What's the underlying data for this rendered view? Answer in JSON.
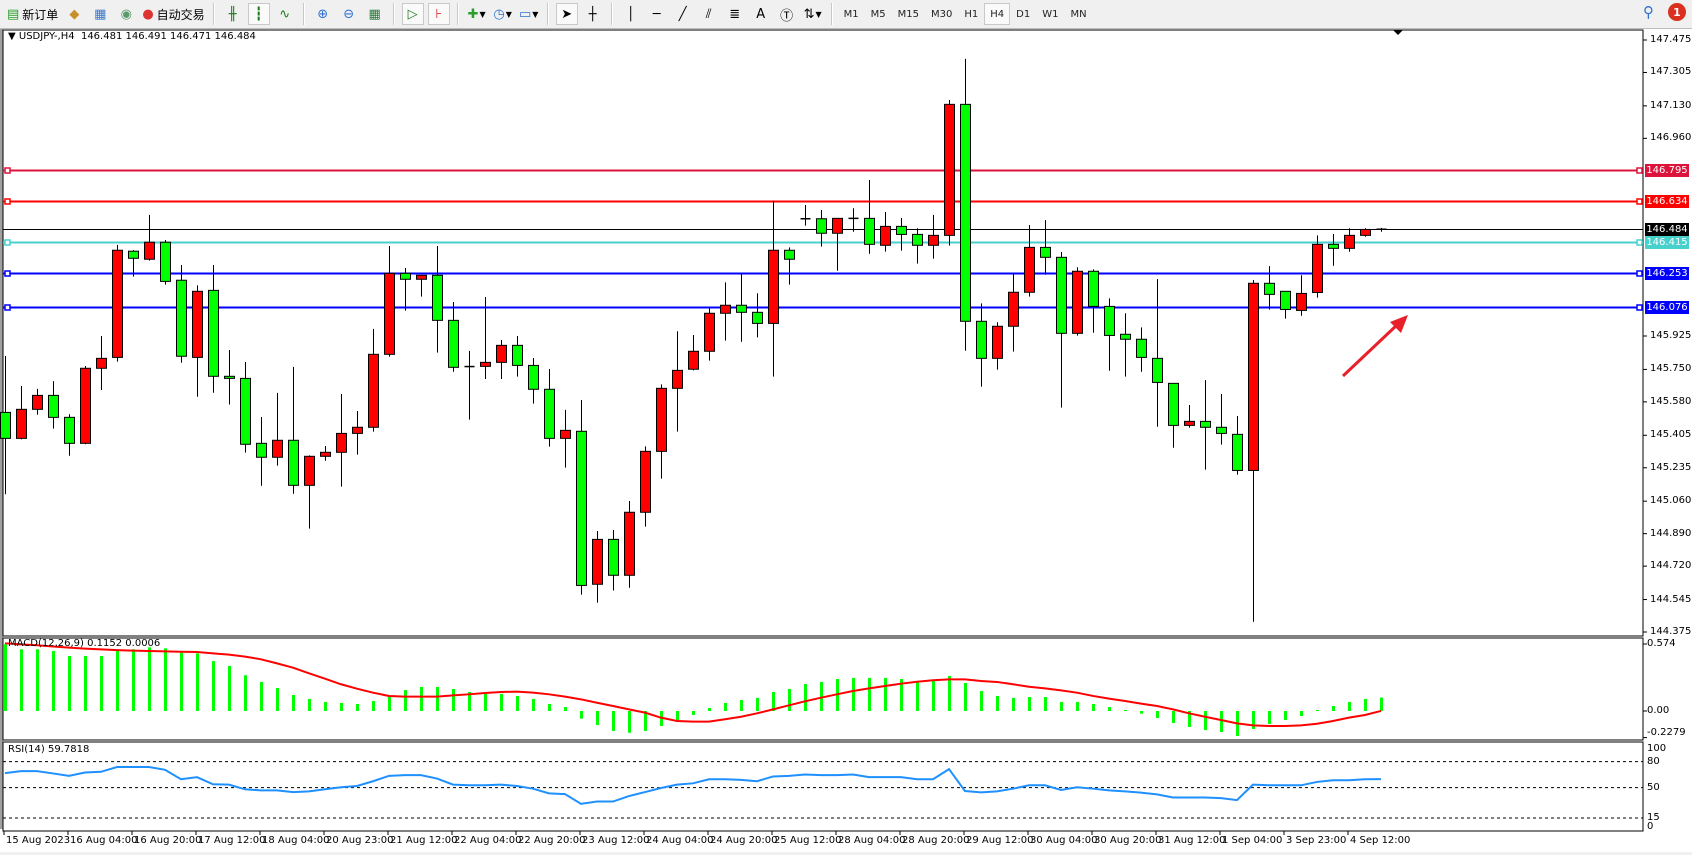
{
  "toolbar": {
    "new_order_label": "新订单",
    "auto_trading_label": "自动交易",
    "timeframes": [
      "M1",
      "M5",
      "M15",
      "M30",
      "H1",
      "H4",
      "D1",
      "W1",
      "MN"
    ],
    "active_timeframe": "H4",
    "notification_count": "1"
  },
  "chart": {
    "symbol": "USDJPY-,H4",
    "ohlc": "146.481 146.491 146.471 146.484",
    "colors": {
      "bull": "#ff0000",
      "bear": "#00ff00",
      "outline": "#000000"
    },
    "price_ticks": [
      "147.475",
      "147.305",
      "147.130",
      "146.960",
      "145.925",
      "145.750",
      "145.580",
      "145.405",
      "145.235",
      "145.060",
      "144.890",
      "144.720",
      "144.545",
      "144.375"
    ],
    "levels": [
      {
        "price": 146.795,
        "label": "146.795",
        "color": "#dc143c"
      },
      {
        "price": 146.634,
        "label": "146.634",
        "color": "#ff0000"
      },
      {
        "price": 146.484,
        "label": "146.484",
        "color": "#000000"
      },
      {
        "price": 146.415,
        "label": "146.415",
        "color": "#48d1cc"
      },
      {
        "price": 146.253,
        "label": "146.253",
        "color": "#0000ff"
      },
      {
        "price": 146.076,
        "label": "146.076",
        "color": "#0000ff"
      }
    ],
    "annotation": {
      "type": "arrow",
      "color": "#e8202a",
      "direction": "up-right"
    },
    "date_labels": [
      "15 Aug 2023",
      "16 Aug 04:00",
      "16 Aug 20:00",
      "17 Aug 12:00",
      "18 Aug 04:00",
      "20 Aug 23:00",
      "21 Aug 12:00",
      "22 Aug 04:00",
      "22 Aug 20:00",
      "23 Aug 12:00",
      "24 Aug 04:00",
      "24 Aug 20:00",
      "25 Aug 12:00",
      "28 Aug 04:00",
      "28 Aug 20:00",
      "29 Aug 12:00",
      "30 Aug 04:00",
      "30 Aug 20:00",
      "31 Aug 12:00",
      "1 Sep 04:00",
      "3 Sep 23:00",
      "4 Sep 12:00"
    ]
  },
  "chart_data": [
    {
      "type": "candlestick",
      "title": "USDJPY-,H4",
      "ylim": [
        144.375,
        147.475
      ],
      "ohlc_order": [
        "open",
        "high",
        "low",
        "close"
      ],
      "candles": [
        [
          145.525,
          145.82,
          145.096,
          145.389
        ],
        [
          145.389,
          145.663,
          145.384,
          145.541
        ],
        [
          145.541,
          145.648,
          145.513,
          145.614
        ],
        [
          145.614,
          145.689,
          145.44,
          145.499
        ],
        [
          145.499,
          145.515,
          145.298,
          145.363
        ],
        [
          145.363,
          145.768,
          145.358,
          145.756
        ],
        [
          145.756,
          145.925,
          145.642,
          145.808
        ],
        [
          145.813,
          146.402,
          145.791,
          146.374
        ],
        [
          146.369,
          146.375,
          146.236,
          146.332
        ],
        [
          146.327,
          146.559,
          146.32,
          146.416
        ],
        [
          146.416,
          146.428,
          146.194,
          146.211
        ],
        [
          146.217,
          146.297,
          145.785,
          145.819
        ],
        [
          145.813,
          146.19,
          145.607,
          146.159
        ],
        [
          146.164,
          146.297,
          145.628,
          145.714
        ],
        [
          145.714,
          145.852,
          145.566,
          145.703
        ],
        [
          145.703,
          145.789,
          145.314,
          145.358
        ],
        [
          145.363,
          145.501,
          145.141,
          145.29
        ],
        [
          145.29,
          145.627,
          145.246,
          145.379
        ],
        [
          145.379,
          145.763,
          145.099,
          145.143
        ],
        [
          145.143,
          145.3,
          144.916,
          145.295
        ],
        [
          145.295,
          145.349,
          145.272,
          145.316
        ],
        [
          145.316,
          145.621,
          145.136,
          145.415
        ],
        [
          145.415,
          145.532,
          145.304,
          145.447
        ],
        [
          145.447,
          145.962,
          145.424,
          145.829
        ],
        [
          145.829,
          146.396,
          145.817,
          146.253
        ],
        [
          146.253,
          146.281,
          146.058,
          146.222
        ],
        [
          146.222,
          146.243,
          146.131,
          146.243
        ],
        [
          146.243,
          146.396,
          145.838,
          146.007
        ],
        [
          146.007,
          146.103,
          145.738,
          145.761
        ],
        [
          145.765,
          145.847,
          145.487,
          145.765
        ],
        [
          145.766,
          146.129,
          145.7,
          145.787
        ],
        [
          145.787,
          145.904,
          145.7,
          145.876
        ],
        [
          145.876,
          145.925,
          145.712,
          145.771
        ],
        [
          145.771,
          145.81,
          145.571,
          145.646
        ],
        [
          145.646,
          145.752,
          145.346,
          145.389
        ],
        [
          145.389,
          145.538,
          145.236,
          145.431
        ],
        [
          145.426,
          145.59,
          144.571,
          144.619
        ],
        [
          144.625,
          144.904,
          144.529,
          144.86
        ],
        [
          144.86,
          144.909,
          144.592,
          144.672
        ],
        [
          144.672,
          145.061,
          144.607,
          145.002
        ],
        [
          145.002,
          145.347,
          144.927,
          145.321
        ],
        [
          145.321,
          145.672,
          145.178,
          145.651
        ],
        [
          145.651,
          145.95,
          145.424,
          145.745
        ],
        [
          145.751,
          145.93,
          145.745,
          145.845
        ],
        [
          145.845,
          146.07,
          145.796,
          146.044
        ],
        [
          146.044,
          146.206,
          145.901,
          146.086
        ],
        [
          146.086,
          146.25,
          145.895,
          146.049
        ],
        [
          146.049,
          146.149,
          145.918,
          145.991
        ],
        [
          145.991,
          146.634,
          145.712,
          146.374
        ],
        [
          146.374,
          146.389,
          146.194,
          146.327
        ],
        [
          146.539,
          146.611,
          146.503,
          146.539
        ],
        [
          146.539,
          146.585,
          146.393,
          146.463
        ],
        [
          146.463,
          146.541,
          146.267,
          146.541
        ],
        [
          146.541,
          146.594,
          146.471,
          146.541
        ],
        [
          146.541,
          146.742,
          146.356,
          146.405
        ],
        [
          146.4,
          146.574,
          146.367,
          146.499
        ],
        [
          146.499,
          146.543,
          146.372,
          146.457
        ],
        [
          146.457,
          146.489,
          146.304,
          146.4
        ],
        [
          146.4,
          146.559,
          146.33,
          146.452
        ],
        [
          146.452,
          147.161,
          146.398,
          147.138
        ],
        [
          147.138,
          147.376,
          145.848,
          146.002
        ],
        [
          146.002,
          146.096,
          145.66,
          145.808
        ],
        [
          145.808,
          145.997,
          145.749,
          145.976
        ],
        [
          145.976,
          146.253,
          145.843,
          146.154
        ],
        [
          146.154,
          146.506,
          146.131,
          146.389
        ],
        [
          146.389,
          146.532,
          146.246,
          146.337
        ],
        [
          146.337,
          146.365,
          145.55,
          145.939
        ],
        [
          145.939,
          146.285,
          145.927,
          146.264
        ],
        [
          146.264,
          146.274,
          145.942,
          146.08
        ],
        [
          146.08,
          146.122,
          145.743,
          145.928
        ],
        [
          145.934,
          146.044,
          145.712,
          145.908
        ],
        [
          145.908,
          145.97,
          145.738,
          145.813
        ],
        [
          145.808,
          146.223,
          145.45,
          145.682
        ],
        [
          145.677,
          145.677,
          145.34,
          145.457
        ],
        [
          145.457,
          145.564,
          145.445,
          145.478
        ],
        [
          145.478,
          145.694,
          145.225,
          145.447
        ],
        [
          145.447,
          145.621,
          145.356,
          145.415
        ],
        [
          145.41,
          145.506,
          145.199,
          145.221
        ],
        [
          145.221,
          146.218,
          144.429,
          146.201
        ],
        [
          146.201,
          146.291,
          146.063,
          146.143
        ],
        [
          146.159,
          146.159,
          146.016,
          146.064
        ],
        [
          146.059,
          146.243,
          146.031,
          146.148
        ],
        [
          146.153,
          146.452,
          146.126,
          146.405
        ],
        [
          146.405,
          146.459,
          146.293,
          146.384
        ],
        [
          146.384,
          146.489,
          146.366,
          146.452
        ],
        [
          146.452,
          146.489,
          146.445,
          146.483
        ],
        [
          146.481,
          146.491,
          146.471,
          146.484
        ]
      ]
    },
    {
      "type": "bar",
      "title": "MACD(12,26,9) 0.1152 0.0006",
      "ylim": [
        -0.2279,
        0.574
      ],
      "ticks": [
        "0.574",
        "0.00",
        "-0.2279"
      ],
      "series": [
        {
          "name": "MACD",
          "type": "bar",
          "color": "#00ff00",
          "values": [
            0.571,
            0.529,
            0.529,
            0.514,
            0.471,
            0.471,
            0.471,
            0.523,
            0.529,
            0.546,
            0.537,
            0.5,
            0.494,
            0.428,
            0.386,
            0.306,
            0.249,
            0.197,
            0.137,
            0.103,
            0.077,
            0.069,
            0.06,
            0.086,
            0.129,
            0.18,
            0.206,
            0.206,
            0.189,
            0.163,
            0.146,
            0.146,
            0.129,
            0.103,
            0.06,
            0.034,
            -0.066,
            -0.12,
            -0.171,
            -0.186,
            -0.171,
            -0.129,
            -0.077,
            -0.034,
            0.026,
            0.069,
            0.094,
            0.112,
            0.163,
            0.189,
            0.231,
            0.249,
            0.274,
            0.283,
            0.283,
            0.283,
            0.274,
            0.257,
            0.257,
            0.3,
            0.24,
            0.171,
            0.129,
            0.112,
            0.12,
            0.12,
            0.077,
            0.077,
            0.06,
            0.034,
            0.009,
            -0.023,
            -0.06,
            -0.103,
            -0.137,
            -0.163,
            -0.18,
            -0.214,
            -0.154,
            -0.111,
            -0.077,
            -0.043,
            0.009,
            0.043,
            0.077,
            0.103,
            0.1152
          ]
        },
        {
          "name": "Signal",
          "type": "line",
          "color": "#ff0000",
          "values": [
            0.58,
            0.571,
            0.563,
            0.553,
            0.543,
            0.535,
            0.528,
            0.522,
            0.517,
            0.514,
            0.511,
            0.508,
            0.506,
            0.494,
            0.483,
            0.466,
            0.443,
            0.408,
            0.371,
            0.323,
            0.277,
            0.229,
            0.191,
            0.157,
            0.129,
            0.123,
            0.123,
            0.123,
            0.134,
            0.143,
            0.154,
            0.163,
            0.166,
            0.157,
            0.143,
            0.123,
            0.1,
            0.071,
            0.043,
            0.014,
            -0.014,
            -0.057,
            -0.086,
            -0.091,
            -0.091,
            -0.071,
            -0.049,
            -0.02,
            0.014,
            0.049,
            0.083,
            0.114,
            0.143,
            0.171,
            0.194,
            0.214,
            0.234,
            0.251,
            0.263,
            0.271,
            0.271,
            0.257,
            0.249,
            0.229,
            0.208,
            0.194,
            0.177,
            0.157,
            0.129,
            0.106,
            0.086,
            0.063,
            0.043,
            0.014,
            -0.02,
            -0.049,
            -0.077,
            -0.106,
            -0.123,
            -0.129,
            -0.129,
            -0.123,
            -0.109,
            -0.086,
            -0.057,
            -0.034,
            0.0006
          ]
        }
      ]
    },
    {
      "type": "line",
      "title": "RSI(14) 59.7818",
      "ylim": [
        0,
        100
      ],
      "ticks": [
        "100",
        "80",
        "50",
        "15",
        "0"
      ],
      "levels": [
        80,
        50,
        15
      ],
      "series": [
        {
          "name": "RSI",
          "color": "#1e90ff",
          "values": [
            66.8,
            69.1,
            69.1,
            66.4,
            63.6,
            67.5,
            68.3,
            73.8,
            73.8,
            73.8,
            70.6,
            59.7,
            62.1,
            53.9,
            53.5,
            48.1,
            46.9,
            46.9,
            44.9,
            45.7,
            48.1,
            50.4,
            51.9,
            57.4,
            63.6,
            64.4,
            64.4,
            60.5,
            53.5,
            52.7,
            52.7,
            53.5,
            51.9,
            48.8,
            43.4,
            42.6,
            31.3,
            34.0,
            34.0,
            40.3,
            44.9,
            49.6,
            53.5,
            55.0,
            59.7,
            59.7,
            59.0,
            57.4,
            62.9,
            63.6,
            65.2,
            64.4,
            64.4,
            65.2,
            62.1,
            62.1,
            62.1,
            59.7,
            59.7,
            71.4,
            46.1,
            44.5,
            45.7,
            48.8,
            52.7,
            52.7,
            47.3,
            50.4,
            48.8,
            46.9,
            45.7,
            44.2,
            42.2,
            38.7,
            38.7,
            38.7,
            37.9,
            35.6,
            53.5,
            52.7,
            52.7,
            52.7,
            56.6,
            58.6,
            58.6,
            59.7,
            59.7818
          ]
        }
      ]
    }
  ]
}
